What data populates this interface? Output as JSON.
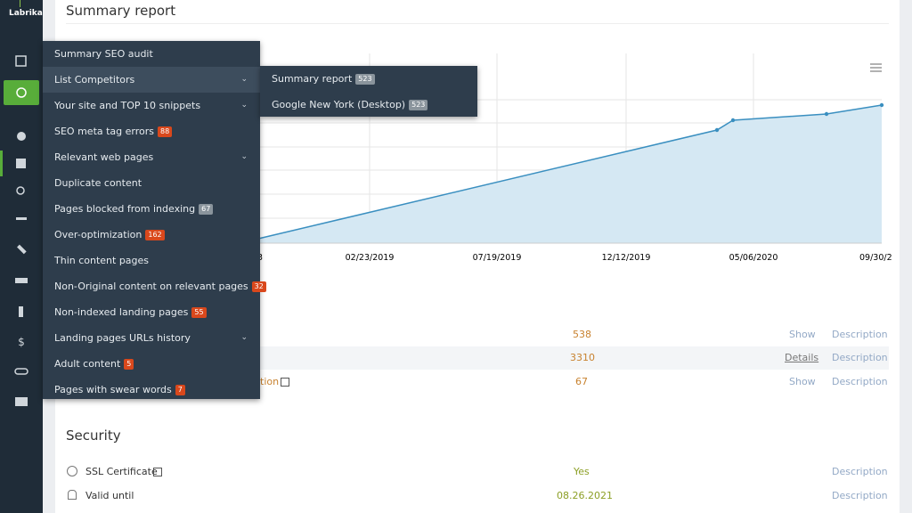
{
  "header": {
    "logo": "Labrika",
    "title": "Summary report"
  },
  "menu": {
    "items": [
      {
        "label": "Summary SEO audit"
      },
      {
        "label": "List Competitors"
      },
      {
        "label": "Your site and TOP 10 snippets"
      },
      {
        "label": "SEO meta tag errors",
        "badge": 88
      },
      {
        "label": "Relevant web pages"
      },
      {
        "label": "Duplicate content"
      },
      {
        "label": "Pages blocked from indexing",
        "badge": 67
      },
      {
        "label": "Over-optimization",
        "badge": 162
      },
      {
        "label": "Thin content pages"
      },
      {
        "label": "Non-Original content on relevant pages",
        "badge": 32
      },
      {
        "label": "Non-indexed landing pages",
        "badge": 55
      },
      {
        "label": "Landing pages URLs history"
      },
      {
        "label": "Adult content",
        "badge": 5
      },
      {
        "label": "Pages with swear words",
        "badge": 7
      }
    ]
  },
  "submenu": {
    "items": [
      {
        "label": "Summary report",
        "badge": 523
      },
      {
        "label": "Google New York (Desktop)",
        "badge": 523
      }
    ]
  },
  "chart": {
    "x_labels": [
      "3",
      "02/23/2019",
      "07/19/2019",
      "12/12/2019",
      "05/06/2020",
      "09/30/2"
    ]
  },
  "table": {
    "rows": [
      {
        "value": 538,
        "action": "Show",
        "link": "Description"
      },
      {
        "value": 3310,
        "action": "Details",
        "link": "Description"
      },
      {
        "label": "tion",
        "value": 67,
        "action": "Show",
        "link": "Description"
      }
    ]
  },
  "security": {
    "title": "Security",
    "rows": [
      {
        "label": "SSL Certificate",
        "value": "Yes",
        "link": "Description"
      },
      {
        "label": "Valid until",
        "value": "08.26.2021",
        "link": "Description"
      }
    ]
  }
}
